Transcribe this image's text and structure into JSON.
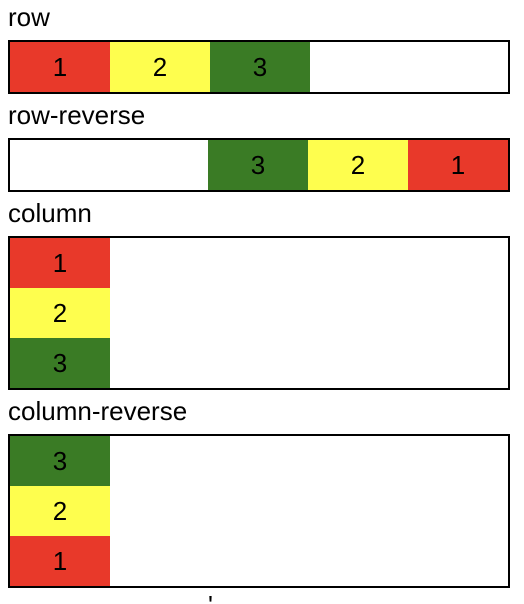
{
  "sections": [
    {
      "label": "row",
      "items": [
        "1",
        "2",
        "3"
      ]
    },
    {
      "label": "row-reverse",
      "items": [
        "1",
        "2",
        "3"
      ]
    },
    {
      "label": "column",
      "items": [
        "1",
        "2",
        "3"
      ]
    },
    {
      "label": "column-reverse",
      "items": [
        "1",
        "2",
        "3"
      ]
    }
  ],
  "colors": {
    "item_1": "#e8392a",
    "item_2": "#fefe4e",
    "item_3": "#3a7b25",
    "border": "#000000"
  },
  "next_section_partial": "'"
}
